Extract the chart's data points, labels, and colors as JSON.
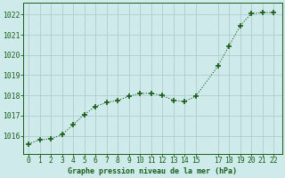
{
  "x": [
    0,
    1,
    2,
    3,
    4,
    5,
    6,
    7,
    8,
    9,
    10,
    11,
    12,
    13,
    14,
    15,
    17,
    18,
    19,
    20,
    21,
    22
  ],
  "y": [
    1015.6,
    1015.8,
    1015.85,
    1016.05,
    1016.55,
    1017.05,
    1017.45,
    1017.65,
    1017.75,
    1017.95,
    1018.1,
    1018.1,
    1018.0,
    1017.75,
    1017.7,
    1017.95,
    1019.45,
    1020.45,
    1021.45,
    1022.05,
    1022.1,
    1022.1
  ],
  "line_color": "#1a5e1a",
  "marker_color": "#1a5e1a",
  "bg_color": "#ceeaea",
  "grid_color": "#b0cccc",
  "xlabel": "Graphe pression niveau de la mer (hPa)",
  "xlabel_color": "#1a5e1a",
  "xticks": [
    0,
    1,
    2,
    3,
    4,
    5,
    6,
    7,
    8,
    9,
    10,
    11,
    12,
    13,
    14,
    15,
    17,
    18,
    19,
    20,
    21,
    22
  ],
  "yticks": [
    1016,
    1017,
    1018,
    1019,
    1020,
    1021,
    1022
  ],
  "ylim": [
    1015.1,
    1022.6
  ],
  "xlim": [
    -0.5,
    22.8
  ],
  "tick_color": "#1a5e1a",
  "spine_color": "#1a5e1a",
  "tick_fontsize": 5.8,
  "label_fontsize": 6.0
}
